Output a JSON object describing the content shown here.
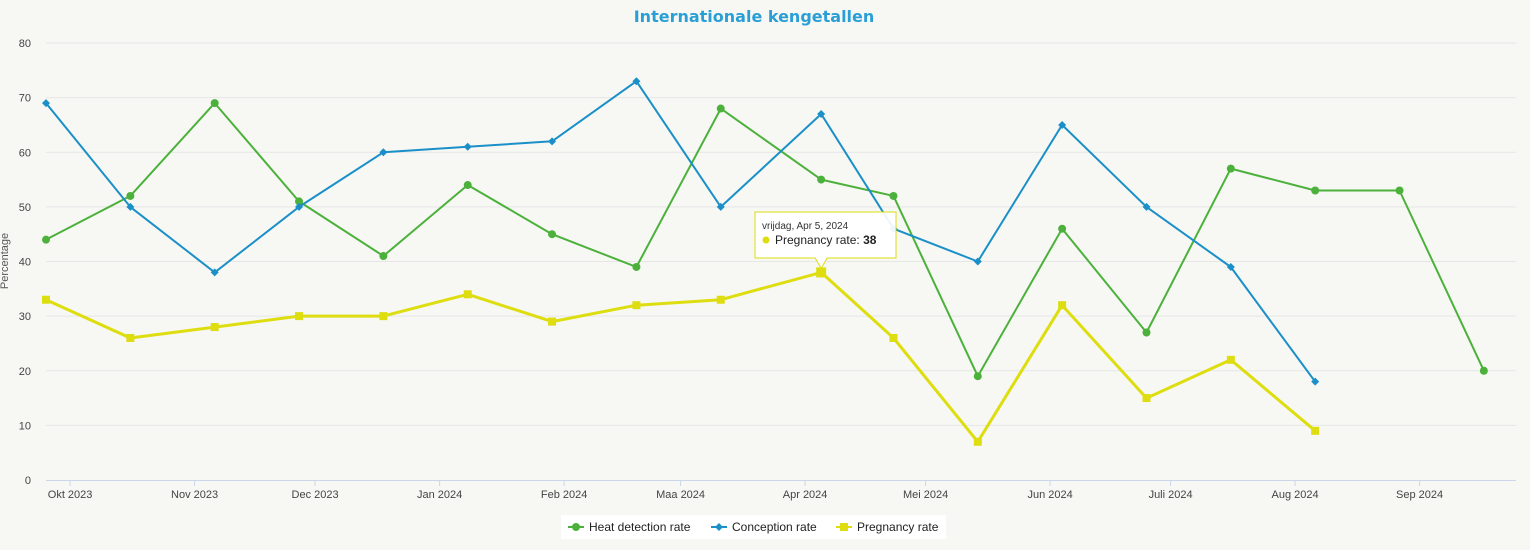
{
  "chart_data": {
    "type": "line",
    "title": "Internationale kengetallen",
    "ylabel": "Percentage",
    "ylim": [
      0,
      80
    ],
    "yticks": [
      0,
      10,
      20,
      30,
      40,
      50,
      60,
      70,
      80
    ],
    "xlim": [
      "2023-09-25",
      "2024-09-25"
    ],
    "xticks": [
      {
        "date": "2023-10-01",
        "label": "Okt 2023"
      },
      {
        "date": "2023-11-01",
        "label": "Nov 2023"
      },
      {
        "date": "2023-12-01",
        "label": "Dec 2023"
      },
      {
        "date": "2024-01-01",
        "label": "Jan 2024"
      },
      {
        "date": "2024-02-01",
        "label": "Feb 2024"
      },
      {
        "date": "2024-03-01",
        "label": "Maa 2024"
      },
      {
        "date": "2024-04-01",
        "label": "Apr 2024"
      },
      {
        "date": "2024-05-01",
        "label": "Mei 2024"
      },
      {
        "date": "2024-06-01",
        "label": "Jun 2024"
      },
      {
        "date": "2024-07-01",
        "label": "Juli 2024"
      },
      {
        "date": "2024-08-01",
        "label": "Aug 2024"
      },
      {
        "date": "2024-09-01",
        "label": "Sep 2024"
      }
    ],
    "x": [
      "2023-09-25",
      "2023-10-16",
      "2023-11-06",
      "2023-11-27",
      "2023-12-18",
      "2024-01-08",
      "2024-01-29",
      "2024-02-19",
      "2024-03-11",
      "2024-04-05",
      "2024-04-23",
      "2024-05-14",
      "2024-06-04",
      "2024-06-25",
      "2024-07-16",
      "2024-08-06",
      "2024-08-27",
      "2024-09-17"
    ],
    "series": [
      {
        "name": "Heat detection rate",
        "color": "#4cb13b",
        "marker": "circle",
        "values": [
          44,
          52,
          69,
          51,
          41,
          54,
          45,
          39,
          68,
          55,
          52,
          19,
          46,
          27,
          57,
          53,
          53,
          20
        ]
      },
      {
        "name": "Conception rate",
        "color": "#1a8fc8",
        "marker": "diamond",
        "values": [
          69,
          50,
          38,
          50,
          60,
          61,
          62,
          73,
          50,
          67,
          46,
          40,
          65,
          50,
          39,
          18,
          null,
          null
        ]
      },
      {
        "name": "Pregnancy rate",
        "color": "#dddd10",
        "marker": "square",
        "values": [
          33,
          26,
          28,
          30,
          30,
          34,
          29,
          32,
          33,
          38,
          26,
          7,
          32,
          15,
          22,
          9,
          null,
          null
        ]
      }
    ],
    "legend_position": "bottom-center",
    "grid": true,
    "tooltip": {
      "date_text": "vrijdag, Apr 5, 2024",
      "series_label": "Pregnancy rate:",
      "value": "38",
      "series_index": 2,
      "point_index": 9,
      "color": "#dddd10"
    }
  }
}
